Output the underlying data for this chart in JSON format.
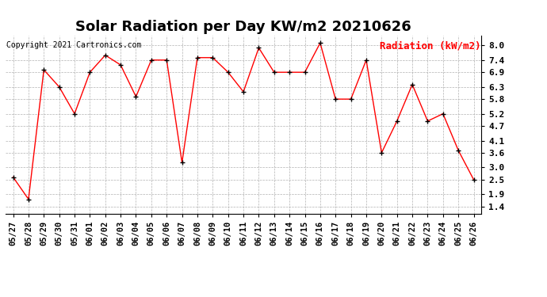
{
  "title": "Solar Radiation per Day KW/m2 20210626",
  "copyright_text": "Copyright 2021 Cartronics.com",
  "legend_label": "Radiation (kW/m2)",
  "dates": [
    "05/27",
    "05/28",
    "05/29",
    "05/30",
    "05/31",
    "06/01",
    "06/02",
    "06/03",
    "06/04",
    "06/05",
    "06/06",
    "06/07",
    "06/08",
    "06/09",
    "06/10",
    "06/11",
    "06/12",
    "06/13",
    "06/14",
    "06/15",
    "06/16",
    "06/17",
    "06/18",
    "06/19",
    "06/20",
    "06/21",
    "06/22",
    "06/23",
    "06/24",
    "06/25",
    "06/26"
  ],
  "values": [
    2.6,
    1.7,
    7.0,
    6.3,
    5.2,
    6.9,
    7.6,
    7.2,
    5.9,
    7.4,
    7.4,
    3.2,
    7.5,
    7.5,
    6.9,
    6.1,
    7.9,
    6.9,
    6.9,
    6.9,
    8.1,
    5.8,
    5.8,
    7.4,
    3.6,
    4.9,
    6.4,
    4.9,
    5.2,
    3.7,
    2.5
  ],
  "line_color": "red",
  "marker_color": "black",
  "marker": "+",
  "background_color": "white",
  "grid_color": "#aaaaaa",
  "title_fontsize": 13,
  "yticks": [
    1.4,
    1.9,
    2.5,
    3.0,
    3.6,
    4.1,
    4.7,
    5.2,
    5.8,
    6.3,
    6.9,
    7.4,
    8.0
  ],
  "ylim": [
    1.1,
    8.4
  ],
  "copyright_color": "black",
  "legend_color": "red",
  "copyright_fontsize": 7,
  "legend_fontsize": 9,
  "tick_fontsize": 7.5,
  "ytick_fontsize": 8
}
